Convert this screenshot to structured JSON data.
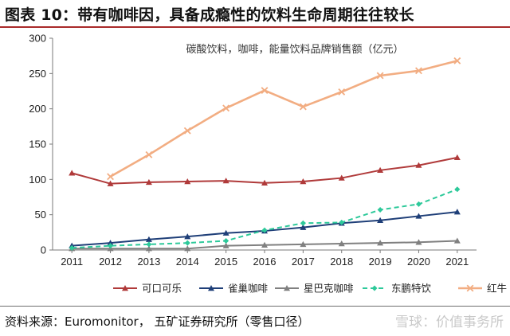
{
  "figure": {
    "title": "图表 10：带有咖啡因，具备成瘾性的饮料生命周期往往较长",
    "source": "资料来源：Euromonitor， 五矿证券研究所（零售口径）",
    "watermark": "雪球：价值事务所"
  },
  "chart_data": {
    "type": "line",
    "title": "碳酸饮料，咖啡，能量饮料品牌销售额（亿元）",
    "xlabel": "",
    "ylabel": "",
    "x": [
      "2011",
      "2012",
      "2013",
      "2014",
      "2015",
      "2016",
      "2017",
      "2018",
      "2019",
      "2020",
      "2021"
    ],
    "ylim": [
      0,
      300
    ],
    "yticks": [
      0,
      50,
      100,
      150,
      200,
      250,
      300
    ],
    "grid": false,
    "legend_position": "bottom",
    "series": [
      {
        "name": "可口可乐",
        "color": "#b03a3a",
        "marker": "triangle",
        "dash": "solid",
        "values": [
          109,
          94,
          96,
          97,
          98,
          95,
          97,
          102,
          113,
          120,
          131
        ]
      },
      {
        "name": "雀巢咖啡",
        "color": "#1f3f78",
        "marker": "triangle",
        "dash": "solid",
        "values": [
          6,
          10,
          15,
          19,
          24,
          27,
          32,
          38,
          42,
          48,
          54
        ]
      },
      {
        "name": "星巴克咖啡",
        "color": "#808080",
        "marker": "triangle",
        "dash": "solid",
        "values": [
          2,
          2,
          2,
          2,
          6,
          7,
          8,
          9,
          10,
          11,
          13
        ]
      },
      {
        "name": "东鹏特饮",
        "color": "#2dc99a",
        "marker": "diamond",
        "dash": "dashed",
        "values": [
          3,
          6,
          8,
          10,
          13,
          28,
          38,
          39,
          57,
          65,
          86
        ]
      },
      {
        "name": "红牛",
        "color": "#f2ad82",
        "marker": "x",
        "dash": "solid",
        "values": [
          null,
          104,
          135,
          169,
          201,
          226,
          203,
          224,
          247,
          254,
          268
        ]
      }
    ]
  }
}
